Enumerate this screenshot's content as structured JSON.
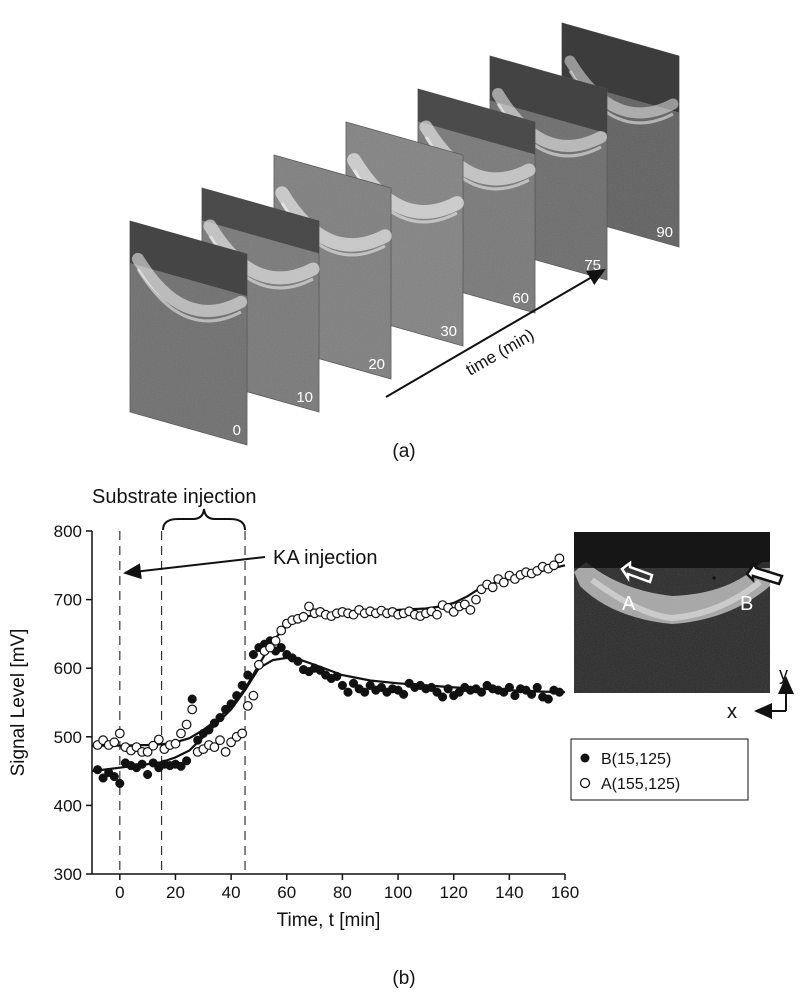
{
  "panel_a": {
    "label": "(a)",
    "axis_label": "time (min)",
    "frames": [
      {
        "time": "0",
        "brightness": 0.42
      },
      {
        "time": "10",
        "brightness": 0.5
      },
      {
        "time": "20",
        "brightness": 0.55
      },
      {
        "time": "30",
        "brightness": 0.58
      },
      {
        "time": "60",
        "brightness": 0.5
      },
      {
        "time": "75",
        "brightness": 0.4
      },
      {
        "time": "90",
        "brightness": 0.3
      }
    ]
  },
  "panel_b": {
    "label": "(b)",
    "annotation_substrate": "Substrate injection",
    "annotation_ka": "KA injection",
    "inset": {
      "marker_a": "A",
      "marker_b": "B",
      "axis_x": "x",
      "axis_y": "y"
    }
  },
  "chart_data": {
    "type": "scatter",
    "xlabel": "Time, t [min]",
    "ylabel": "Signal Level [mV]",
    "xlim": [
      -10,
      160
    ],
    "ylim": [
      300,
      800
    ],
    "xticks": [
      0,
      20,
      40,
      60,
      80,
      100,
      120,
      140,
      160
    ],
    "yticks": [
      300,
      400,
      500,
      600,
      700,
      800
    ],
    "grid": false,
    "legend_position": "right",
    "reference_lines_x": [
      0,
      15,
      45
    ],
    "series": [
      {
        "name": "B(15,125)",
        "marker": "filled-circle",
        "color": "#111111",
        "x": [
          -8,
          -6,
          -4,
          -2,
          0,
          2,
          4,
          6,
          8,
          10,
          12,
          14,
          16,
          18,
          20,
          22,
          24,
          26,
          28,
          30,
          32,
          34,
          36,
          38,
          40,
          42,
          44,
          46,
          48,
          50,
          52,
          54,
          56,
          58,
          60,
          62,
          64,
          66,
          68,
          70,
          72,
          74,
          76,
          78,
          80,
          82,
          84,
          86,
          88,
          90,
          92,
          94,
          96,
          98,
          100,
          102,
          104,
          106,
          108,
          110,
          112,
          114,
          116,
          118,
          120,
          122,
          124,
          126,
          128,
          130,
          132,
          134,
          136,
          138,
          140,
          142,
          144,
          146,
          148,
          150,
          152,
          154,
          156,
          158
        ],
        "y": [
          452,
          440,
          448,
          442,
          432,
          462,
          458,
          455,
          460,
          445,
          462,
          455,
          460,
          458,
          460,
          457,
          465,
          555,
          495,
          505,
          510,
          520,
          528,
          540,
          548,
          560,
          575,
          590,
          620,
          630,
          635,
          640,
          625,
          630,
          620,
          615,
          610,
          598,
          595,
          600,
          597,
          590,
          585,
          588,
          575,
          565,
          578,
          570,
          565,
          575,
          568,
          572,
          565,
          570,
          568,
          562,
          578,
          572,
          575,
          570,
          572,
          565,
          558,
          570,
          560,
          565,
          572,
          568,
          570,
          565,
          575,
          570,
          568,
          565,
          572,
          560,
          570,
          568,
          562,
          572,
          558,
          555,
          568,
          565
        ],
        "fit": {
          "x": [
            -10,
            0,
            10,
            15,
            20,
            25,
            30,
            35,
            40,
            45,
            50,
            55,
            60,
            65,
            70,
            80,
            90,
            100,
            110,
            120,
            130,
            140,
            150,
            160
          ],
          "y": [
            450,
            455,
            460,
            463,
            470,
            480,
            500,
            520,
            540,
            568,
            600,
            612,
            615,
            612,
            605,
            590,
            582,
            578,
            575,
            572,
            570,
            568,
            566,
            565
          ]
        }
      },
      {
        "name": "A(155,125)",
        "marker": "open-circle",
        "color": "#111111",
        "x": [
          -8,
          -6,
          -4,
          -2,
          0,
          2,
          4,
          6,
          8,
          10,
          12,
          14,
          16,
          18,
          20,
          22,
          24,
          26,
          28,
          30,
          32,
          34,
          36,
          38,
          40,
          42,
          44,
          46,
          48,
          50,
          52,
          54,
          56,
          58,
          60,
          62,
          64,
          66,
          68,
          70,
          72,
          74,
          76,
          78,
          80,
          82,
          84,
          86,
          88,
          90,
          92,
          94,
          96,
          98,
          100,
          102,
          104,
          106,
          108,
          110,
          112,
          114,
          116,
          118,
          120,
          122,
          124,
          126,
          128,
          130,
          132,
          134,
          136,
          138,
          140,
          142,
          144,
          146,
          148,
          150,
          152,
          154,
          156,
          158
        ],
        "y": [
          488,
          495,
          488,
          492,
          505,
          485,
          480,
          485,
          478,
          478,
          487,
          496,
          482,
          488,
          490,
          505,
          518,
          540,
          478,
          482,
          488,
          485,
          495,
          478,
          492,
          500,
          505,
          545,
          560,
          605,
          625,
          630,
          640,
          655,
          665,
          670,
          672,
          675,
          690,
          680,
          682,
          678,
          676,
          680,
          682,
          680,
          678,
          685,
          680,
          683,
          680,
          684,
          680,
          682,
          678,
          680,
          683,
          678,
          676,
          680,
          683,
          678,
          692,
          688,
          682,
          690,
          693,
          685,
          700,
          715,
          722,
          718,
          730,
          725,
          735,
          730,
          736,
          740,
          738,
          742,
          748,
          745,
          750,
          760
        ],
        "fit": {
          "x": [
            -10,
            0,
            10,
            15,
            20,
            25,
            30,
            35,
            40,
            45,
            50,
            55,
            60,
            65,
            70,
            80,
            90,
            100,
            110,
            115,
            120,
            125,
            130,
            135,
            140,
            150,
            160
          ],
          "y": [
            487,
            487,
            488,
            489,
            492,
            498,
            510,
            525,
            545,
            570,
            605,
            640,
            662,
            673,
            678,
            682,
            684,
            685,
            687,
            690,
            695,
            705,
            718,
            725,
            730,
            740,
            750
          ]
        }
      }
    ]
  }
}
